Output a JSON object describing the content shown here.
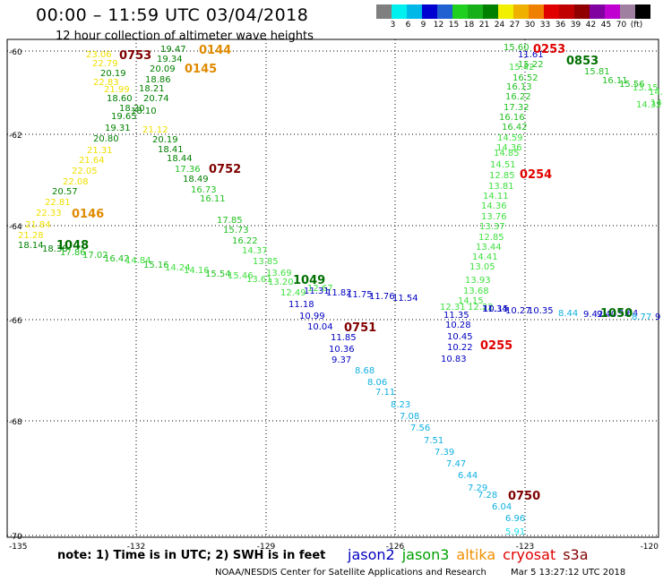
{
  "title": "00:00 – 11:59 UTC 03/04/2018",
  "subtitle": "12 hour collection of altimeter wave heights",
  "colorbar": {
    "colors": [
      "#7f7f7f",
      "#00f0f0",
      "#00b8e8",
      "#0000d0",
      "#2060d0",
      "#20d020",
      "#18b018",
      "#008000",
      "#f0f000",
      "#f0b000",
      "#f08000",
      "#e00000",
      "#c00000",
      "#900000",
      "#8000a0",
      "#c000d0",
      "#a080a0",
      "#000000"
    ],
    "labels": [
      "3",
      "6",
      "9",
      "12",
      "15",
      "18",
      "21",
      "24",
      "27",
      "30",
      "33",
      "36",
      "39",
      "42",
      "45",
      "70",
      "(ft)"
    ]
  },
  "lat_labels": [
    "-60",
    "-62",
    "-64",
    "-66",
    "-68",
    "-70"
  ],
  "lon_labels": [
    "-135",
    "-132",
    "-129",
    "-126",
    "-123",
    "-120"
  ],
  "track_labels": [
    {
      "text": "0753",
      "color": "#800000",
      "bold": true
    },
    {
      "text": "0144",
      "color": "#e08a00",
      "bold": true
    },
    {
      "text": "0145",
      "color": "#e08a00",
      "bold": true
    },
    {
      "text": "0752",
      "color": "#800000",
      "bold": true
    },
    {
      "text": "0146",
      "color": "#e08a00",
      "bold": true
    },
    {
      "text": "1048",
      "color": "#007000",
      "bold": true
    },
    {
      "text": "1049",
      "color": "#007000",
      "bold": true
    },
    {
      "text": "0751",
      "color": "#800000",
      "bold": true
    },
    {
      "text": "0255",
      "color": "#e00000",
      "bold": true
    },
    {
      "text": "0254",
      "color": "#e00000",
      "bold": true
    },
    {
      "text": "0253",
      "color": "#e00000",
      "bold": true
    },
    {
      "text": "0853",
      "color": "#007000",
      "bold": true
    },
    {
      "text": "1050",
      "color": "#007000",
      "bold": true
    },
    {
      "text": "0750",
      "color": "#800000",
      "bold": true
    }
  ],
  "swh_values": [
    {
      "t": "23.06",
      "c": "#f0e000"
    },
    {
      "t": "22.79",
      "c": "#f0e000"
    },
    {
      "t": "20.19",
      "c": "#008000"
    },
    {
      "t": "22.83",
      "c": "#f0e000"
    },
    {
      "t": "21.99",
      "c": "#f0e000"
    },
    {
      "t": "18.60",
      "c": "#008000"
    },
    {
      "t": "18.20",
      "c": "#008000"
    },
    {
      "t": "19.65",
      "c": "#008000"
    },
    {
      "t": "19.31",
      "c": "#008000"
    },
    {
      "t": "20.80",
      "c": "#008000"
    },
    {
      "t": "21.31",
      "c": "#f0e000"
    },
    {
      "t": "21.64",
      "c": "#f0e000"
    },
    {
      "t": "22.05",
      "c": "#f0e000"
    },
    {
      "t": "22.08",
      "c": "#f0e000"
    },
    {
      "t": "20.57",
      "c": "#008000"
    },
    {
      "t": "22.81",
      "c": "#f0e000"
    },
    {
      "t": "22.33",
      "c": "#f0e000"
    },
    {
      "t": "21.84",
      "c": "#f0e000"
    },
    {
      "t": "21.28",
      "c": "#f0e000"
    },
    {
      "t": "18.14",
      "c": "#008000"
    },
    {
      "t": "18.38",
      "c": "#008000"
    },
    {
      "t": "17.86",
      "c": "#20c020"
    },
    {
      "t": "17.02",
      "c": "#20c020"
    },
    {
      "t": "16.42",
      "c": "#20c020"
    },
    {
      "t": "14.84",
      "c": "#40e040"
    },
    {
      "t": "15.16",
      "c": "#20c020"
    },
    {
      "t": "14.24",
      "c": "#40e040"
    },
    {
      "t": "14.16",
      "c": "#40e040"
    },
    {
      "t": "15.54",
      "c": "#20c020"
    },
    {
      "t": "15.46",
      "c": "#40e040"
    },
    {
      "t": "13.61",
      "c": "#40e040"
    },
    {
      "t": "13.20",
      "c": "#40e040"
    },
    {
      "t": "12.49",
      "c": "#40e040"
    },
    {
      "t": "12.67",
      "c": "#40e040"
    },
    {
      "t": "19.47",
      "c": "#008000"
    },
    {
      "t": "19.34",
      "c": "#008000"
    },
    {
      "t": "20.09",
      "c": "#008000"
    },
    {
      "t": "18.86",
      "c": "#008000"
    },
    {
      "t": "18.21",
      "c": "#008000"
    },
    {
      "t": "20.74",
      "c": "#008000"
    },
    {
      "t": "18.10",
      "c": "#008000"
    },
    {
      "t": "21.12",
      "c": "#f0e000"
    },
    {
      "t": "20.19",
      "c": "#008000"
    },
    {
      "t": "18.41",
      "c": "#008000"
    },
    {
      "t": "18.44",
      "c": "#008000"
    },
    {
      "t": "17.36",
      "c": "#20c020"
    },
    {
      "t": "18.49",
      "c": "#008000"
    },
    {
      "t": "16.73",
      "c": "#20c020"
    },
    {
      "t": "16.11",
      "c": "#20c020"
    },
    {
      "t": "17.85",
      "c": "#20c020"
    },
    {
      "t": "15.73",
      "c": "#20c020"
    },
    {
      "t": "16.22",
      "c": "#20c020"
    },
    {
      "t": "14.37",
      "c": "#40e040"
    },
    {
      "t": "13.85",
      "c": "#40e040"
    },
    {
      "t": "13.69",
      "c": "#40e040"
    },
    {
      "t": "11.31",
      "c": "#0000c0"
    },
    {
      "t": "11.82",
      "c": "#0000c0"
    },
    {
      "t": "11.75",
      "c": "#0000c0"
    },
    {
      "t": "11.76",
      "c": "#0000c0"
    },
    {
      "t": "11.54",
      "c": "#0000c0"
    },
    {
      "t": "11.18",
      "c": "#0000c0"
    },
    {
      "t": "10.99",
      "c": "#0000c0"
    },
    {
      "t": "10.04",
      "c": "#0000c0"
    },
    {
      "t": "11.85",
      "c": "#0000c0"
    },
    {
      "t": "10.36",
      "c": "#0000c0"
    },
    {
      "t": "9.37",
      "c": "#0000c0"
    },
    {
      "t": "8.68",
      "c": "#10b0e0"
    },
    {
      "t": "8.06",
      "c": "#10b0e0"
    },
    {
      "t": "7.11",
      "c": "#10b0e0"
    },
    {
      "t": "8.23",
      "c": "#10b0e0"
    },
    {
      "t": "7.08",
      "c": "#10b0e0"
    },
    {
      "t": "7.56",
      "c": "#10b0e0"
    },
    {
      "t": "7.51",
      "c": "#10b0e0"
    },
    {
      "t": "7.39",
      "c": "#10b0e0"
    },
    {
      "t": "7.47",
      "c": "#10b0e0"
    },
    {
      "t": "6.44",
      "c": "#10b0e0"
    },
    {
      "t": "7.29",
      "c": "#10b0e0"
    },
    {
      "t": "7.28",
      "c": "#10b0e0"
    },
    {
      "t": "6.04",
      "c": "#10b0e0"
    },
    {
      "t": "6.96",
      "c": "#10b0e0"
    },
    {
      "t": "5.91",
      "c": "#20e0f0"
    },
    {
      "t": "15.60",
      "c": "#20c020"
    },
    {
      "t": "11.61",
      "c": "#0000c0"
    },
    {
      "t": "15.22",
      "c": "#20c020"
    },
    {
      "t": "15.42",
      "c": "#40e040"
    },
    {
      "t": "16.52",
      "c": "#20c020"
    },
    {
      "t": "16.13",
      "c": "#20c020"
    },
    {
      "t": "16.22",
      "c": "#20c020"
    },
    {
      "t": "17.32",
      "c": "#20c020"
    },
    {
      "t": "16.16",
      "c": "#20c020"
    },
    {
      "t": "16.42",
      "c": "#20c020"
    },
    {
      "t": "14.59",
      "c": "#40e040"
    },
    {
      "t": "14.36",
      "c": "#40e040"
    },
    {
      "t": "14.85",
      "c": "#40e040"
    },
    {
      "t": "14.51",
      "c": "#40e040"
    },
    {
      "t": "12.85",
      "c": "#40e040"
    },
    {
      "t": "13.81",
      "c": "#40e040"
    },
    {
      "t": "14.11",
      "c": "#40e040"
    },
    {
      "t": "14.36",
      "c": "#40e040"
    },
    {
      "t": "13.76",
      "c": "#40e040"
    },
    {
      "t": "13.37",
      "c": "#40e040"
    },
    {
      "t": "12.85",
      "c": "#40e040"
    },
    {
      "t": "13.44",
      "c": "#40e040"
    },
    {
      "t": "14.41",
      "c": "#40e040"
    },
    {
      "t": "13.05",
      "c": "#40e040"
    },
    {
      "t": "13.93",
      "c": "#40e040"
    },
    {
      "t": "13.68",
      "c": "#40e040"
    },
    {
      "t": "14.15",
      "c": "#40e040"
    },
    {
      "t": "12.31",
      "c": "#40e040"
    },
    {
      "t": "11.35",
      "c": "#0000c0"
    },
    {
      "t": "12.22",
      "c": "#40e040"
    },
    {
      "t": "11.34",
      "c": "#0000c0"
    },
    {
      "t": "10.15",
      "c": "#0000c0"
    },
    {
      "t": "10.27",
      "c": "#0000c0"
    },
    {
      "t": "10.35",
      "c": "#0000c0"
    },
    {
      "t": "8.44",
      "c": "#10b0e0"
    },
    {
      "t": "9.42",
      "c": "#0000c0"
    },
    {
      "t": "9.40",
      "c": "#0000c0"
    },
    {
      "t": "9.64",
      "c": "#0000c0"
    },
    {
      "t": "8.77",
      "c": "#10b0e0"
    },
    {
      "t": "9",
      "c": "#0000c0"
    },
    {
      "t": "10.28",
      "c": "#0000c0"
    },
    {
      "t": "10.45",
      "c": "#0000c0"
    },
    {
      "t": "10.22",
      "c": "#0000c0"
    },
    {
      "t": "10.83",
      "c": "#0000c0"
    },
    {
      "t": "15.81",
      "c": "#20c020"
    },
    {
      "t": "16.11",
      "c": "#20c020"
    },
    {
      "t": "15.56",
      "c": "#20c020"
    },
    {
      "t": "13.15",
      "c": "#40e040"
    },
    {
      "t": "14.18",
      "c": "#40e040"
    },
    {
      "t": "12.32",
      "c": "#40e040"
    },
    {
      "t": "14.19",
      "c": "#40e040"
    },
    {
      "t": "14.32",
      "c": "#40e040"
    }
  ],
  "footer_note": "note:  1) Time is in UTC;  2) SWH is in feet",
  "legend": [
    {
      "name": "jason2",
      "color": "#0000c0"
    },
    {
      "name": "jason3",
      "color": "#00a000"
    },
    {
      "name": "altika",
      "color": "#f09000"
    },
    {
      "name": "cryosat",
      "color": "#e00000"
    },
    {
      "name": "s3a",
      "color": "#800000"
    }
  ],
  "credits": "NOAA/NESDIS Center for Satellite Applications and Research",
  "timestamp": "Mar  5 13:27:12 UTC 2018"
}
